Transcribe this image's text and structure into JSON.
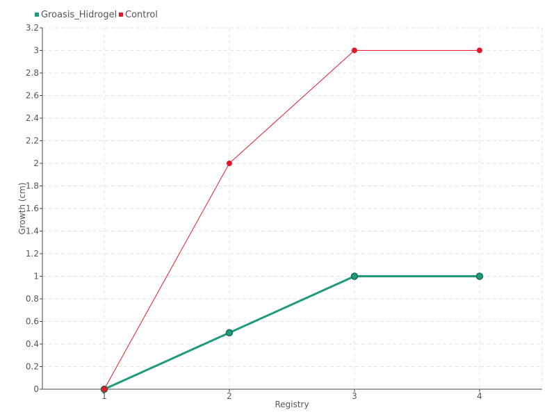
{
  "chart_data": {
    "type": "line",
    "x": [
      "1",
      "2",
      "3",
      "4"
    ],
    "xlabel": "Registry",
    "ylabel": "Growth (cm)",
    "ylim": [
      0,
      3.2
    ],
    "y_ticks": [
      0,
      0.2,
      0.4,
      0.6,
      0.8,
      1,
      1.2,
      1.4,
      1.6,
      1.8,
      2,
      2.2,
      2.4,
      2.6,
      2.8,
      3,
      3.2
    ],
    "y_tick_labels": [
      "0",
      "0.2",
      "0.4",
      "0.6",
      "0.8",
      "1",
      "1.2",
      "1.4",
      "1.6",
      "1.8",
      "2",
      "2.2",
      "2.4",
      "2.6",
      "2.8",
      "3",
      "3.2"
    ],
    "grid": true,
    "legend_position": "top-left",
    "series": [
      {
        "name": "Groasis_Hidrogel",
        "color": "#1f9a7a",
        "values": [
          0,
          0.5,
          1,
          1
        ]
      },
      {
        "name": "Control",
        "color": "#e3192b",
        "values": [
          0,
          2,
          3,
          3
        ]
      }
    ]
  }
}
